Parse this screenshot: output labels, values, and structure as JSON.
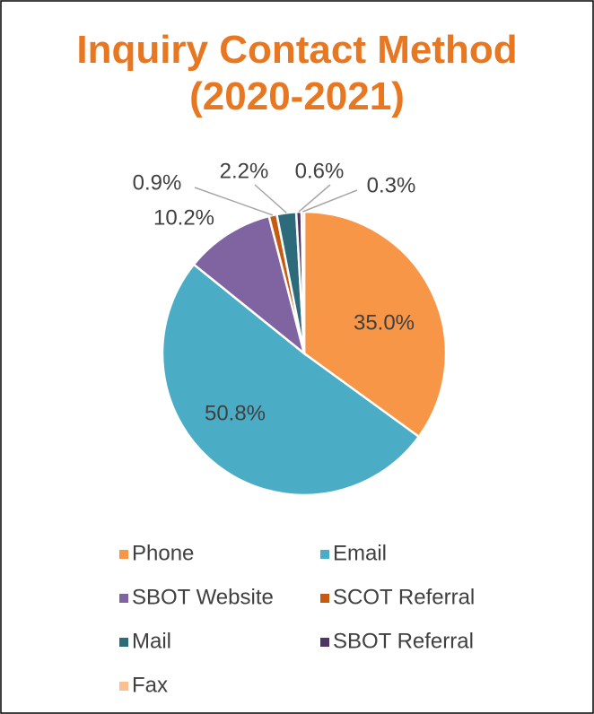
{
  "chart_data": {
    "type": "pie",
    "title": "Inquiry Contact Method (2020-2021)",
    "categories": [
      "Phone",
      "Email",
      "SBOT Website",
      "SCOT Referral",
      "Mail",
      "SBOT Referral",
      "Fax"
    ],
    "values": [
      35.0,
      50.8,
      10.2,
      0.9,
      2.2,
      0.6,
      0.3
    ],
    "value_labels": [
      "35.0%",
      "50.8%",
      "10.2%",
      "0.9%",
      "2.2%",
      "0.6%",
      "0.3%"
    ],
    "colors": [
      "#f79646",
      "#4bacc6",
      "#8064a2",
      "#c55a11",
      "#2d6b7a",
      "#4f3566",
      "#fac090"
    ],
    "legend": "bottom"
  }
}
